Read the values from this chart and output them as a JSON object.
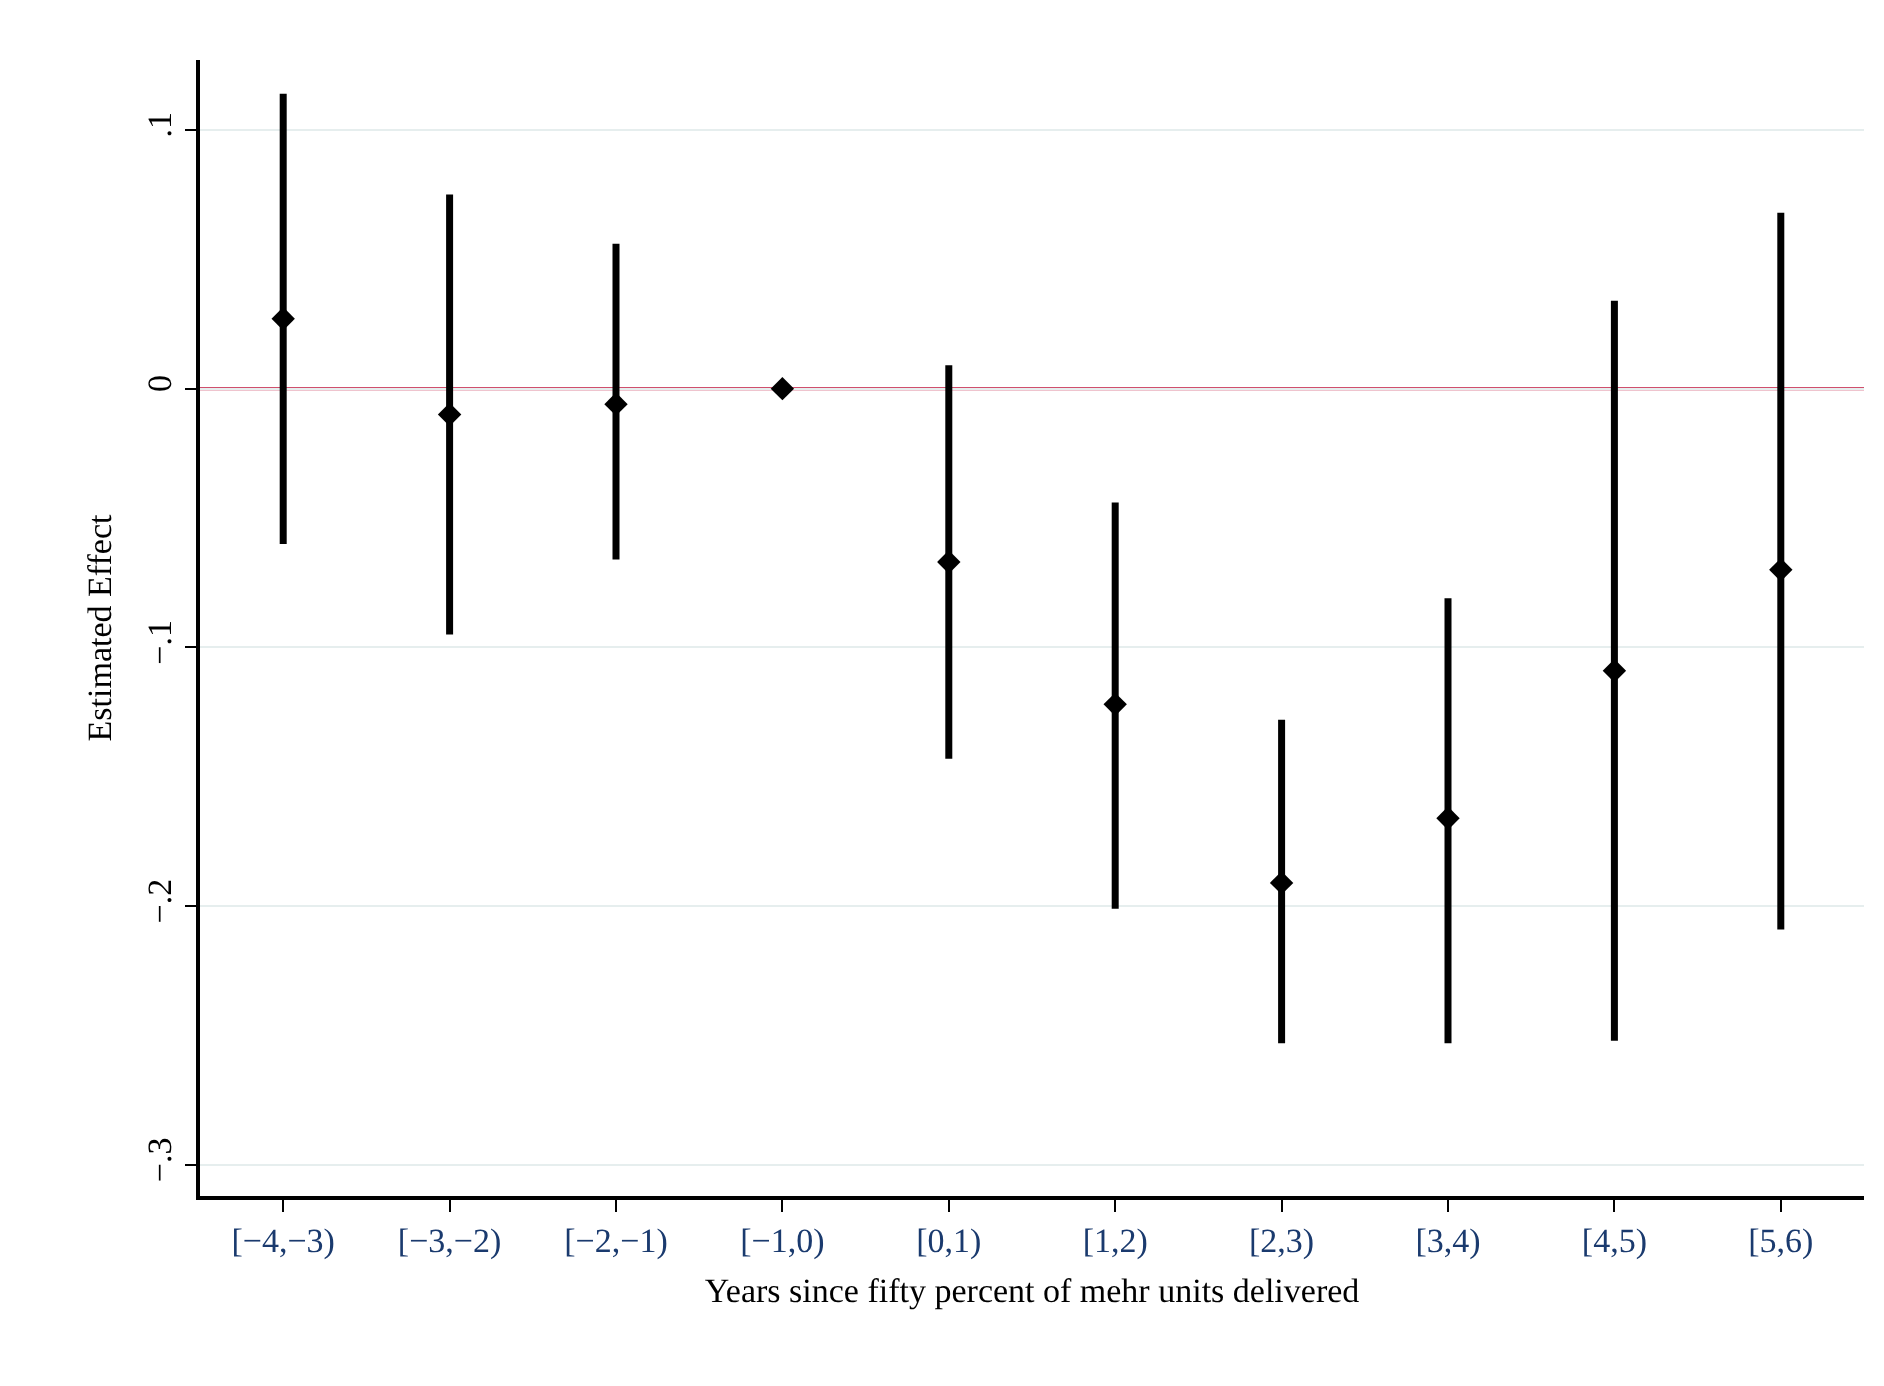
{
  "chart_data": {
    "type": "scatter",
    "xlabel": "Years since fifty percent of mehr units delivered",
    "ylabel": "Estimated Effect",
    "categories": [
      "[−4,−3)",
      "[−3,−2)",
      "[−2,−1)",
      "[−1,0)",
      "[0,1)",
      "[1,2)",
      "[2,3)",
      "[3,4)",
      "[4,5)",
      "[5,6)"
    ],
    "values": [
      0.027,
      -0.01,
      -0.006,
      0,
      -0.067,
      -0.122,
      -0.191,
      -0.166,
      -0.109,
      -0.07
    ],
    "errors": [
      [
        -0.06,
        0.114
      ],
      [
        -0.095,
        0.075
      ],
      [
        -0.066,
        0.056
      ],
      null,
      [
        -0.143,
        0.009
      ],
      [
        -0.201,
        -0.044
      ],
      [
        -0.253,
        -0.128
      ],
      [
        -0.253,
        -0.081
      ],
      [
        -0.252,
        0.034
      ],
      [
        -0.209,
        0.068
      ]
    ],
    "color": "#000000",
    "marker": "diamond",
    "ylim": [
      -0.312,
      0.127
    ],
    "yticks": [
      {
        "value": 0.1,
        "label": ".1"
      },
      0,
      {
        "value": -0.1,
        "label": "−.1"
      },
      {
        "value": -0.2,
        "label": "−.2"
      },
      {
        "value": -0.3,
        "label": "−.3"
      }
    ],
    "ref_lines": [
      {
        "axis": "y",
        "value": 0,
        "color": "#c0143c"
      }
    ],
    "grid": "y"
  }
}
